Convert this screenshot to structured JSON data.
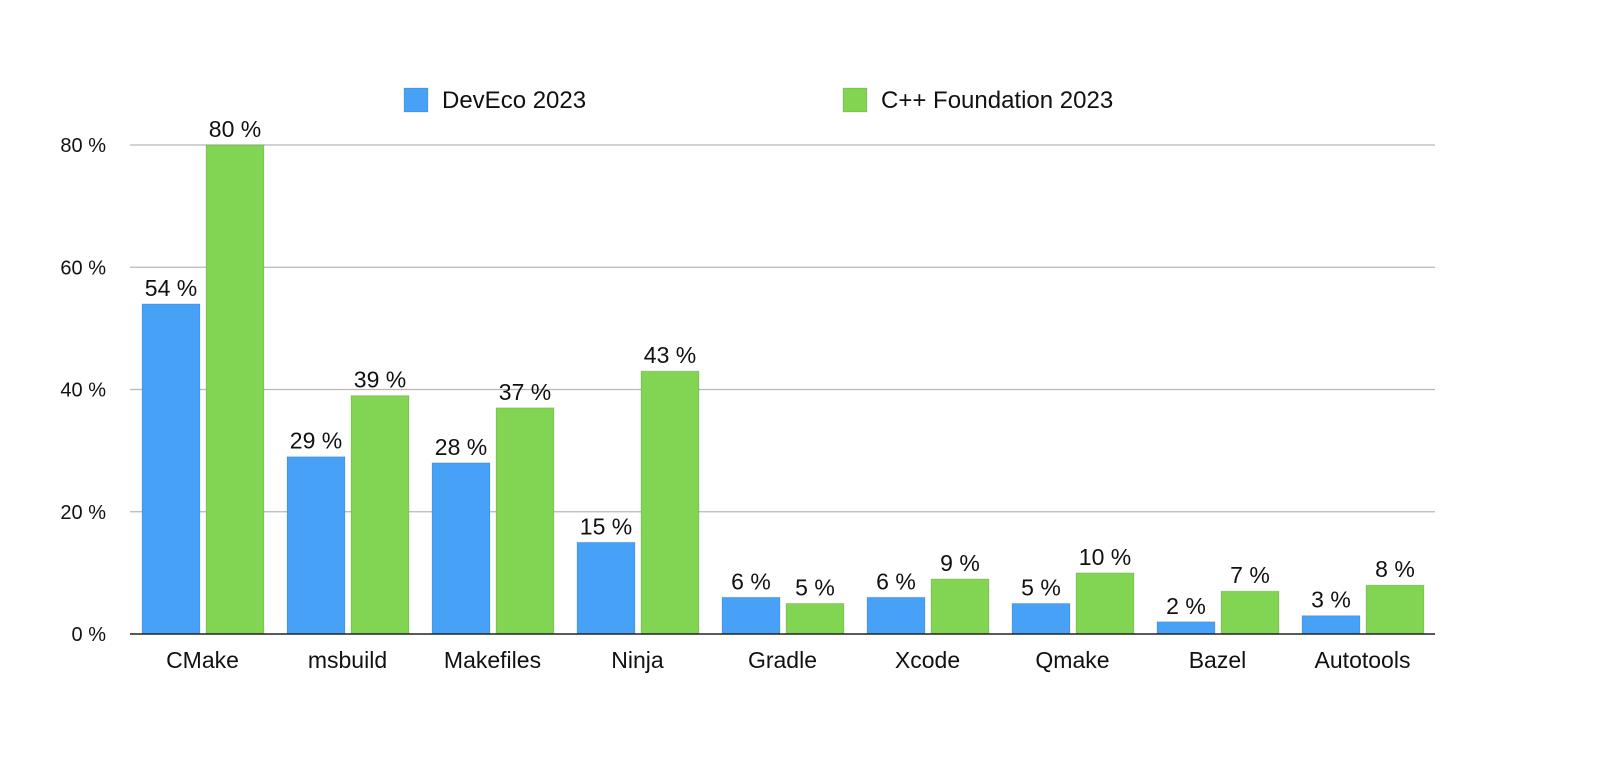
{
  "chart_data": {
    "type": "bar",
    "categories": [
      "CMake",
      "msbuild",
      "Makefiles",
      "Ninja",
      "Gradle",
      "Xcode",
      "Qmake",
      "Bazel",
      "Autotools"
    ],
    "series": [
      {
        "name": "DevEco 2023",
        "color": "#47a1f7",
        "values": [
          54,
          29,
          28,
          15,
          6,
          6,
          5,
          2,
          3
        ]
      },
      {
        "name": "C++ Foundation 2023",
        "color": "#82d453",
        "values": [
          80,
          39,
          37,
          43,
          5,
          9,
          10,
          7,
          8
        ]
      }
    ],
    "value_suffix": " %",
    "ylim": [
      0,
      80
    ],
    "yticks": [
      0,
      20,
      40,
      60,
      80
    ],
    "ytick_labels": [
      "0 %",
      "20 %",
      "40 %",
      "60 %",
      "80 %"
    ],
    "grid": true,
    "legend_position": "top-center"
  }
}
